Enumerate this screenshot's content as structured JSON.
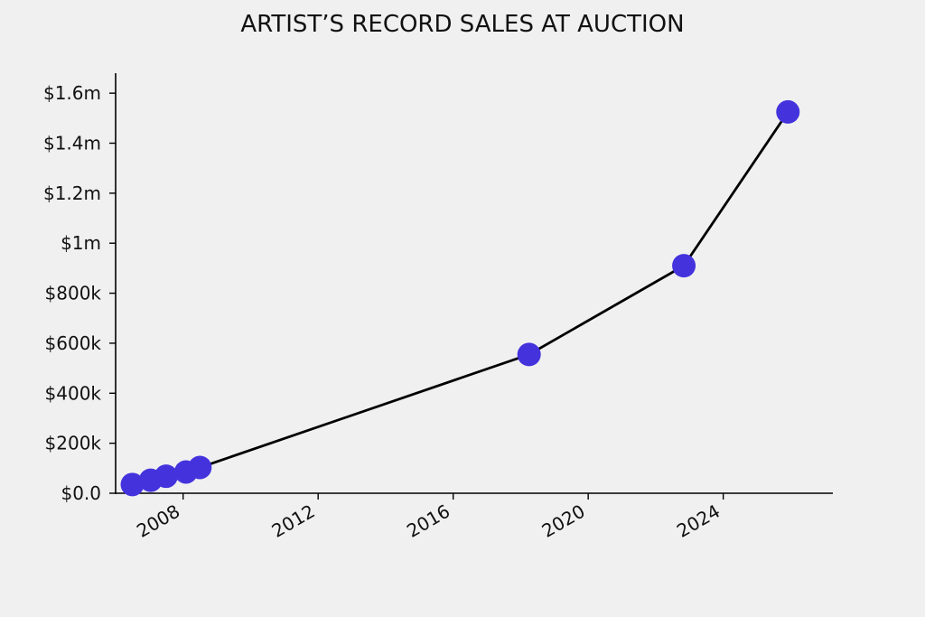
{
  "chart_data": {
    "type": "line",
    "title": "ARTIST’S RECORD SALES AT AUCTION",
    "xlabel": "",
    "ylabel": "",
    "x_axis_type": "date",
    "xlim": [
      "2006-01-01",
      "2027-04-01"
    ],
    "ylim": [
      0,
      1680000
    ],
    "x_ticks": [
      {
        "value": "2008-01-01",
        "label": "2008"
      },
      {
        "value": "2012-01-01",
        "label": "2012"
      },
      {
        "value": "2016-01-01",
        "label": "2016"
      },
      {
        "value": "2020-01-01",
        "label": "2020"
      },
      {
        "value": "2024-01-01",
        "label": "2024"
      }
    ],
    "y_ticks": [
      {
        "value": 0,
        "label": "$0.0"
      },
      {
        "value": 200000,
        "label": "$200k"
      },
      {
        "value": 400000,
        "label": "$400k"
      },
      {
        "value": 600000,
        "label": "$600k"
      },
      {
        "value": 800000,
        "label": "$800k"
      },
      {
        "value": 1000000,
        "label": "$1m"
      },
      {
        "value": 1200000,
        "label": "$1.2m"
      },
      {
        "value": 1400000,
        "label": "$1.4m"
      },
      {
        "value": 1600000,
        "label": "$1.6m"
      }
    ],
    "grid": false,
    "legend": "none",
    "line_color": "#000000",
    "marker_color": "#4433dd",
    "series": [
      {
        "points": [
          {
            "x": "2006-07-01",
            "y": 35000
          },
          {
            "x": "2007-01-15",
            "y": 52000
          },
          {
            "x": "2007-07-01",
            "y": 68000
          },
          {
            "x": "2008-02-01",
            "y": 85000
          },
          {
            "x": "2008-07-01",
            "y": 103000
          },
          {
            "x": "2018-04-01",
            "y": 555000
          },
          {
            "x": "2022-11-01",
            "y": 910000
          },
          {
            "x": "2025-12-01",
            "y": 1525000
          }
        ]
      }
    ]
  }
}
